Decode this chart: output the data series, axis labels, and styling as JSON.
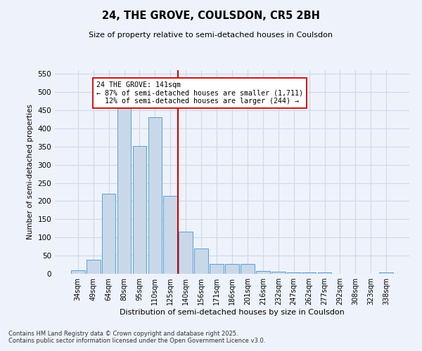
{
  "title1": "24, THE GROVE, COULSDON, CR5 2BH",
  "title2": "Size of property relative to semi-detached houses in Coulsdon",
  "xlabel": "Distribution of semi-detached houses by size in Coulsdon",
  "ylabel": "Number of semi-detached properties",
  "categories": [
    "34sqm",
    "49sqm",
    "64sqm",
    "80sqm",
    "95sqm",
    "110sqm",
    "125sqm",
    "140sqm",
    "156sqm",
    "171sqm",
    "186sqm",
    "201sqm",
    "216sqm",
    "232sqm",
    "247sqm",
    "262sqm",
    "277sqm",
    "292sqm",
    "308sqm",
    "323sqm",
    "338sqm"
  ],
  "values": [
    10,
    39,
    220,
    455,
    352,
    430,
    215,
    115,
    69,
    28,
    27,
    28,
    8,
    5,
    4,
    3,
    3,
    0,
    0,
    0,
    4
  ],
  "bar_color": "#c8d8e8",
  "bar_edge_color": "#5a9fd4",
  "property_label": "24 THE GROVE: 141sqm",
  "pct_smaller": 87,
  "pct_larger": 12,
  "count_smaller": 1711,
  "count_larger": 244,
  "vline_color": "#cc0000",
  "annotation_box_color": "#ffffff",
  "annotation_box_edge": "#cc0000",
  "ylim": [
    0,
    560
  ],
  "yticks": [
    0,
    50,
    100,
    150,
    200,
    250,
    300,
    350,
    400,
    450,
    500,
    550
  ],
  "grid_color": "#d0d8e8",
  "background_color": "#eef2fb",
  "footer_line1": "Contains HM Land Registry data © Crown copyright and database right 2025.",
  "footer_line2": "Contains public sector information licensed under the Open Government Licence v3.0."
}
